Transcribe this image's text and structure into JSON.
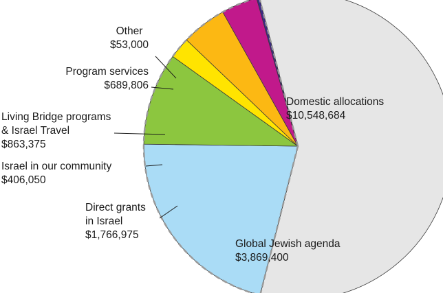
{
  "chart_data": {
    "type": "pie",
    "title": "",
    "slices": [
      {
        "label": "Domestic allocations",
        "value_text": "$10,548,684",
        "value": 10548684,
        "color": "#e6e6e6"
      },
      {
        "label": "Global Jewish agenda",
        "value_text": "$3,869,400",
        "value": 3869400,
        "color": "#aadcf6"
      },
      {
        "label": "Direct grants in Israel",
        "value_text": "$1,766,975",
        "value": 1766975,
        "color": "#8cc63f"
      },
      {
        "label": "Israel in our community",
        "value_text": "$406,050",
        "value": 406050,
        "color": "#ffe400"
      },
      {
        "label": "Living Bridge programs & Israel Travel",
        "value_text": "$863,375",
        "value": 863375,
        "color": "#fcb813"
      },
      {
        "label": "Program services",
        "value_text": "$689,806",
        "value": 689806,
        "color": "#c1198b"
      },
      {
        "label": "Other",
        "value_text": "$53,000",
        "value": 53000,
        "color": "#3b2a87"
      }
    ]
  },
  "labels": {
    "domestic": {
      "line1": "Domestic allocations",
      "line2": "$10,548,684"
    },
    "global": {
      "line1": "Global Jewish agenda",
      "line2": "$3,869,400"
    },
    "direct": {
      "line1": "Direct grants",
      "line2": "in Israel",
      "line3": "$1,766,975"
    },
    "community": {
      "line1": "Israel in our community",
      "line2": "$406,050"
    },
    "living": {
      "line1": "Living Bridge programs",
      "line2": "& Israel Travel",
      "line3": "$863,375"
    },
    "program": {
      "line1": "Program services",
      "line2": "$689,806"
    },
    "other": {
      "line1": "Other",
      "line2": "$53,000"
    }
  }
}
